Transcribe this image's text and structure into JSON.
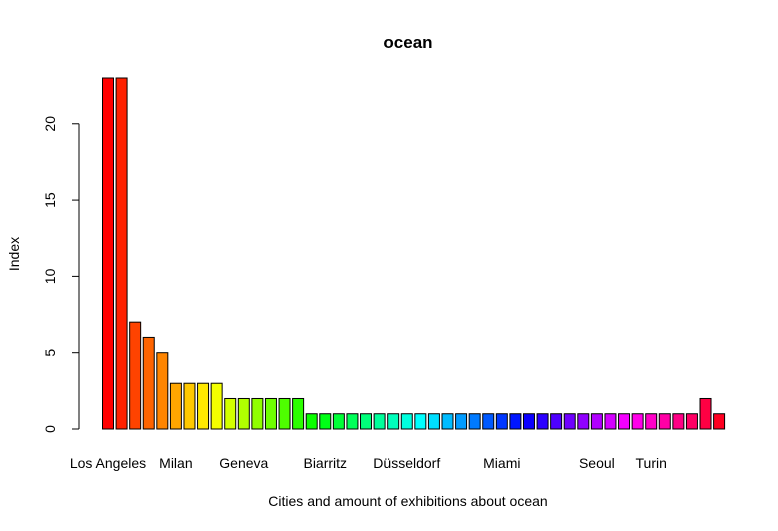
{
  "chart_data": {
    "type": "bar",
    "title": "ocean",
    "xlabel": "Cities and amount of exhibitions about ocean",
    "ylabel": "Index",
    "ylim": [
      0,
      23
    ],
    "yticks": [
      0,
      5,
      10,
      15,
      20
    ],
    "values": [
      23,
      23,
      7,
      6,
      5,
      3,
      3,
      3,
      3,
      2,
      2,
      2,
      2,
      2,
      2,
      1,
      1,
      1,
      1,
      1,
      1,
      1,
      1,
      1,
      1,
      1,
      1,
      1,
      1,
      1,
      1,
      1,
      1,
      1,
      1,
      1,
      1,
      1,
      1,
      1,
      1,
      1,
      1,
      1,
      2,
      1
    ],
    "category_labels": [
      {
        "index": 0,
        "label": "Los Angeles"
      },
      {
        "index": 5,
        "label": "Milan"
      },
      {
        "index": 10,
        "label": "Geneva"
      },
      {
        "index": 16,
        "label": "Biarritz"
      },
      {
        "index": 22,
        "label": "Düsseldorf"
      },
      {
        "index": 29,
        "label": "Miami"
      },
      {
        "index": 36,
        "label": "Seoul"
      },
      {
        "index": 40,
        "label": "Turin"
      }
    ],
    "colors": "rainbow",
    "grid": false,
    "legend": "none"
  }
}
